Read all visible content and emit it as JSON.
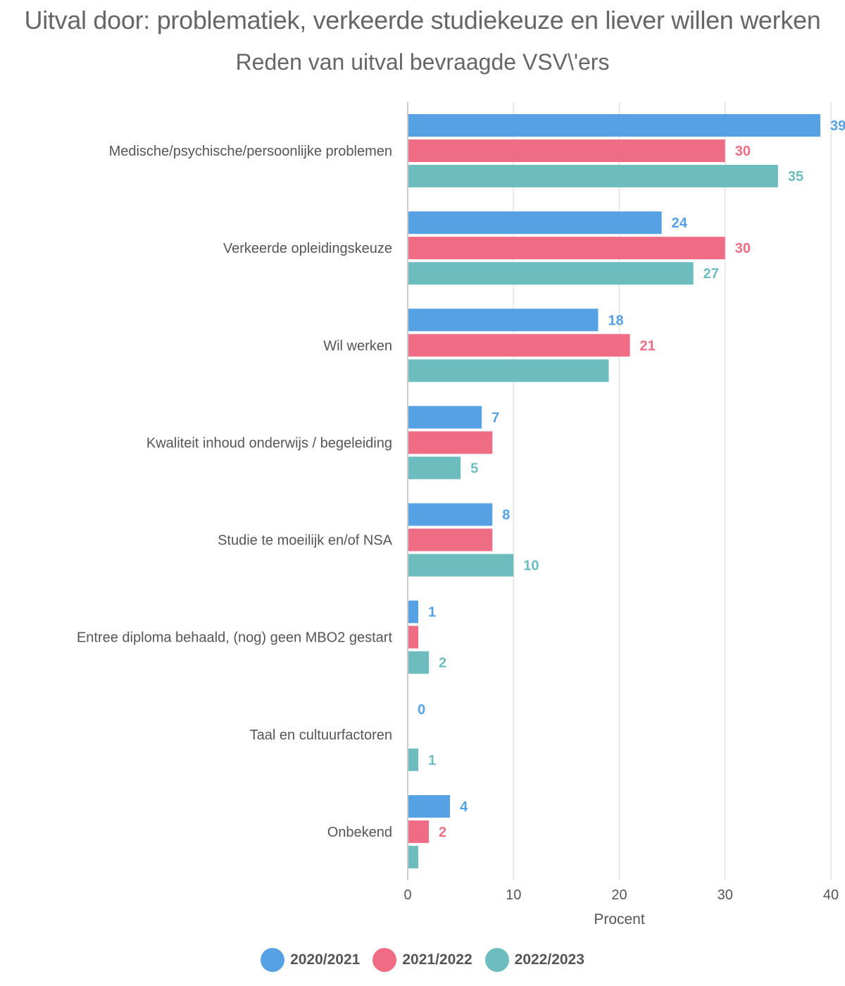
{
  "chart_data": {
    "type": "bar",
    "orientation": "horizontal",
    "title": "Uitval door: problematiek, verkeerde studiekeuze en liever willen werken",
    "subtitle": "Reden van uitval bevraagde VSV\\'ers",
    "xlabel": "Procent",
    "ylabel": "",
    "xlim": [
      0,
      40
    ],
    "xticks": [
      "0",
      "10",
      "20",
      "30",
      "40"
    ],
    "grid": true,
    "legend_position": "bottom",
    "categories": [
      "Medische/psychische/persoonlijke problemen",
      "Verkeerde opleidingskeuze",
      "Wil werken",
      "Kwaliteit inhoud onderwijs / begeleiding",
      "Studie te moeilijk en/of NSA",
      "Entree diploma behaald, (nog) geen MBO2   gestart",
      "Taal en cultuurfactoren",
      "Onbekend"
    ],
    "series": [
      {
        "name": "2020/2021",
        "color": "#56a0e4",
        "values": [
          39,
          24,
          18,
          7,
          8,
          1,
          0,
          4
        ],
        "labels": [
          "39",
          "24",
          "18",
          "7",
          "8",
          "1",
          "0",
          "4"
        ]
      },
      {
        "name": "2021/2022",
        "color": "#ee6c84",
        "values": [
          30,
          30,
          21,
          8,
          8,
          1,
          0,
          2
        ],
        "labels": [
          "30",
          "30",
          "21",
          "",
          "",
          "",
          "",
          "2"
        ]
      },
      {
        "name": "2022/2023",
        "color": "#6dbcbe",
        "values": [
          35,
          27,
          19,
          5,
          10,
          2,
          1,
          1
        ],
        "labels": [
          "35",
          "27",
          "",
          "5",
          "10",
          "2",
          "1",
          ""
        ]
      }
    ]
  }
}
